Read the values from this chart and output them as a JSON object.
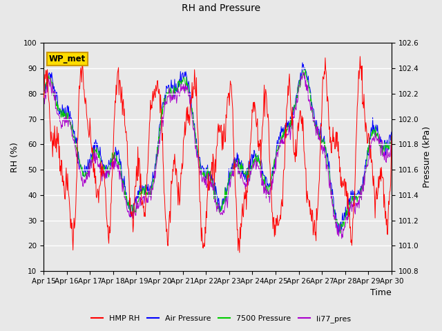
{
  "title": "RH and Pressure",
  "xlabel": "Time",
  "ylabel_left": "RH (%)",
  "ylabel_right": "Pressure (kPa)",
  "ylim_left": [
    10,
    100
  ],
  "ylim_right": [
    100.8,
    102.6
  ],
  "fig_bg_color": "#e8e8e8",
  "plot_bg_color": "#d0d0d0",
  "grid_color": "white",
  "annotation_text": "WP_met",
  "annotation_bg": "#ffdd00",
  "annotation_border": "#cc9900",
  "legend_entries": [
    "HMP RH",
    "Air Pressure",
    "7500 Pressure",
    "li77_pres"
  ],
  "legend_colors": [
    "red",
    "blue",
    "#00cc00",
    "#aa00cc"
  ],
  "x_tick_labels": [
    "Apr 15",
    "Apr 16",
    "Apr 17",
    "Apr 18",
    "Apr 19",
    "Apr 20",
    "Apr 21",
    "Apr 22",
    "Apr 23",
    "Apr 24",
    "Apr 25",
    "Apr 26",
    "Apr 27",
    "Apr 28",
    "Apr 29",
    "Apr 30"
  ],
  "yticks_left": [
    10,
    20,
    30,
    40,
    50,
    60,
    70,
    80,
    90,
    100
  ],
  "yticks_right": [
    100.8,
    101.0,
    101.2,
    101.4,
    101.6,
    101.8,
    102.0,
    102.2,
    102.4,
    102.6
  ]
}
